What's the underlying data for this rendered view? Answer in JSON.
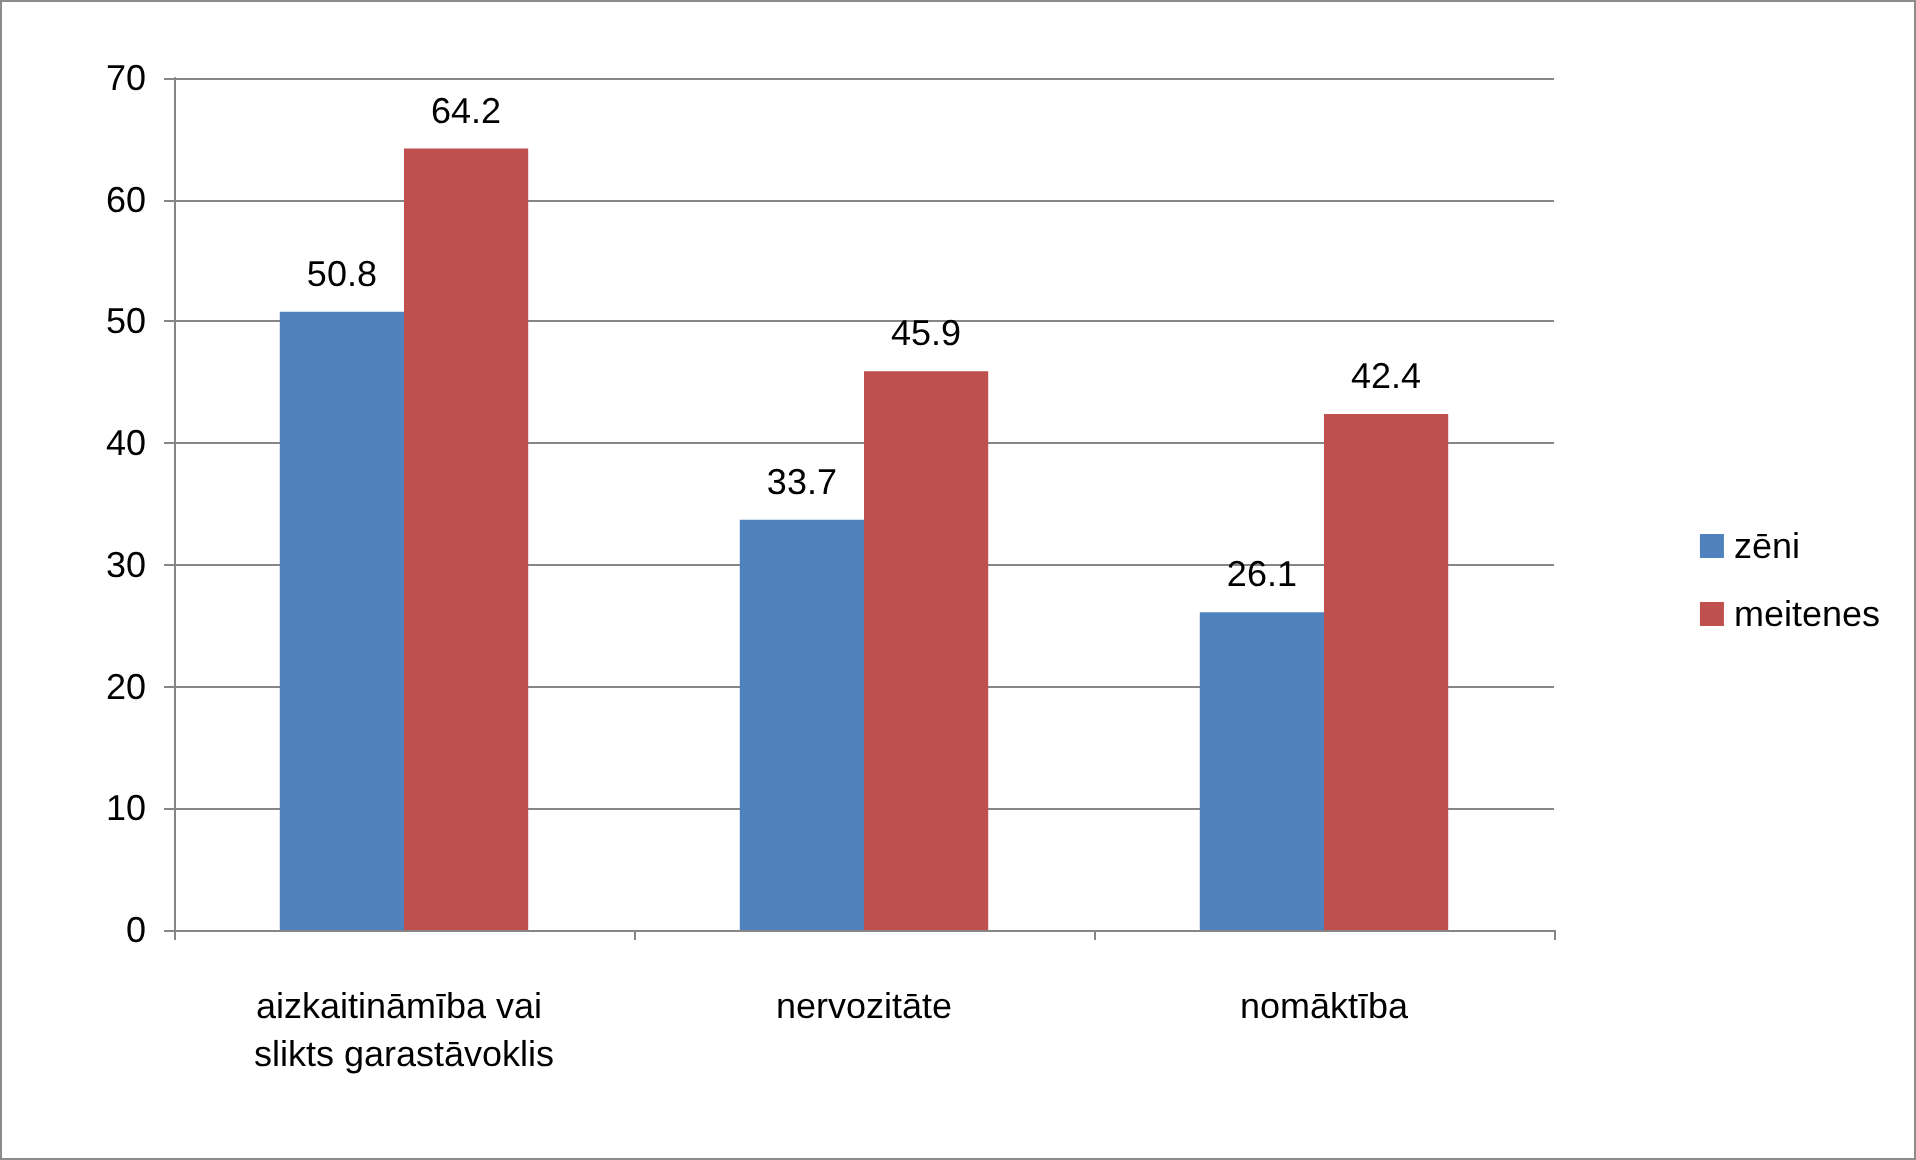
{
  "chart_data": {
    "type": "bar",
    "categories": [
      "aizkaitināmība vai slikts garastāvoklis",
      "nervozitāte",
      "nomāktība"
    ],
    "series": [
      {
        "name": "zēni",
        "color": "#4f81bd",
        "values": [
          50.8,
          33.7,
          26.1
        ]
      },
      {
        "name": "meitenes",
        "color": "#c0504d",
        "values": [
          64.2,
          45.9,
          42.4
        ]
      }
    ],
    "ylim": [
      0,
      70
    ],
    "yticks": [
      0,
      10,
      20,
      30,
      40,
      50,
      60,
      70
    ],
    "grid": "y",
    "legend": "right",
    "data_labels": true
  }
}
